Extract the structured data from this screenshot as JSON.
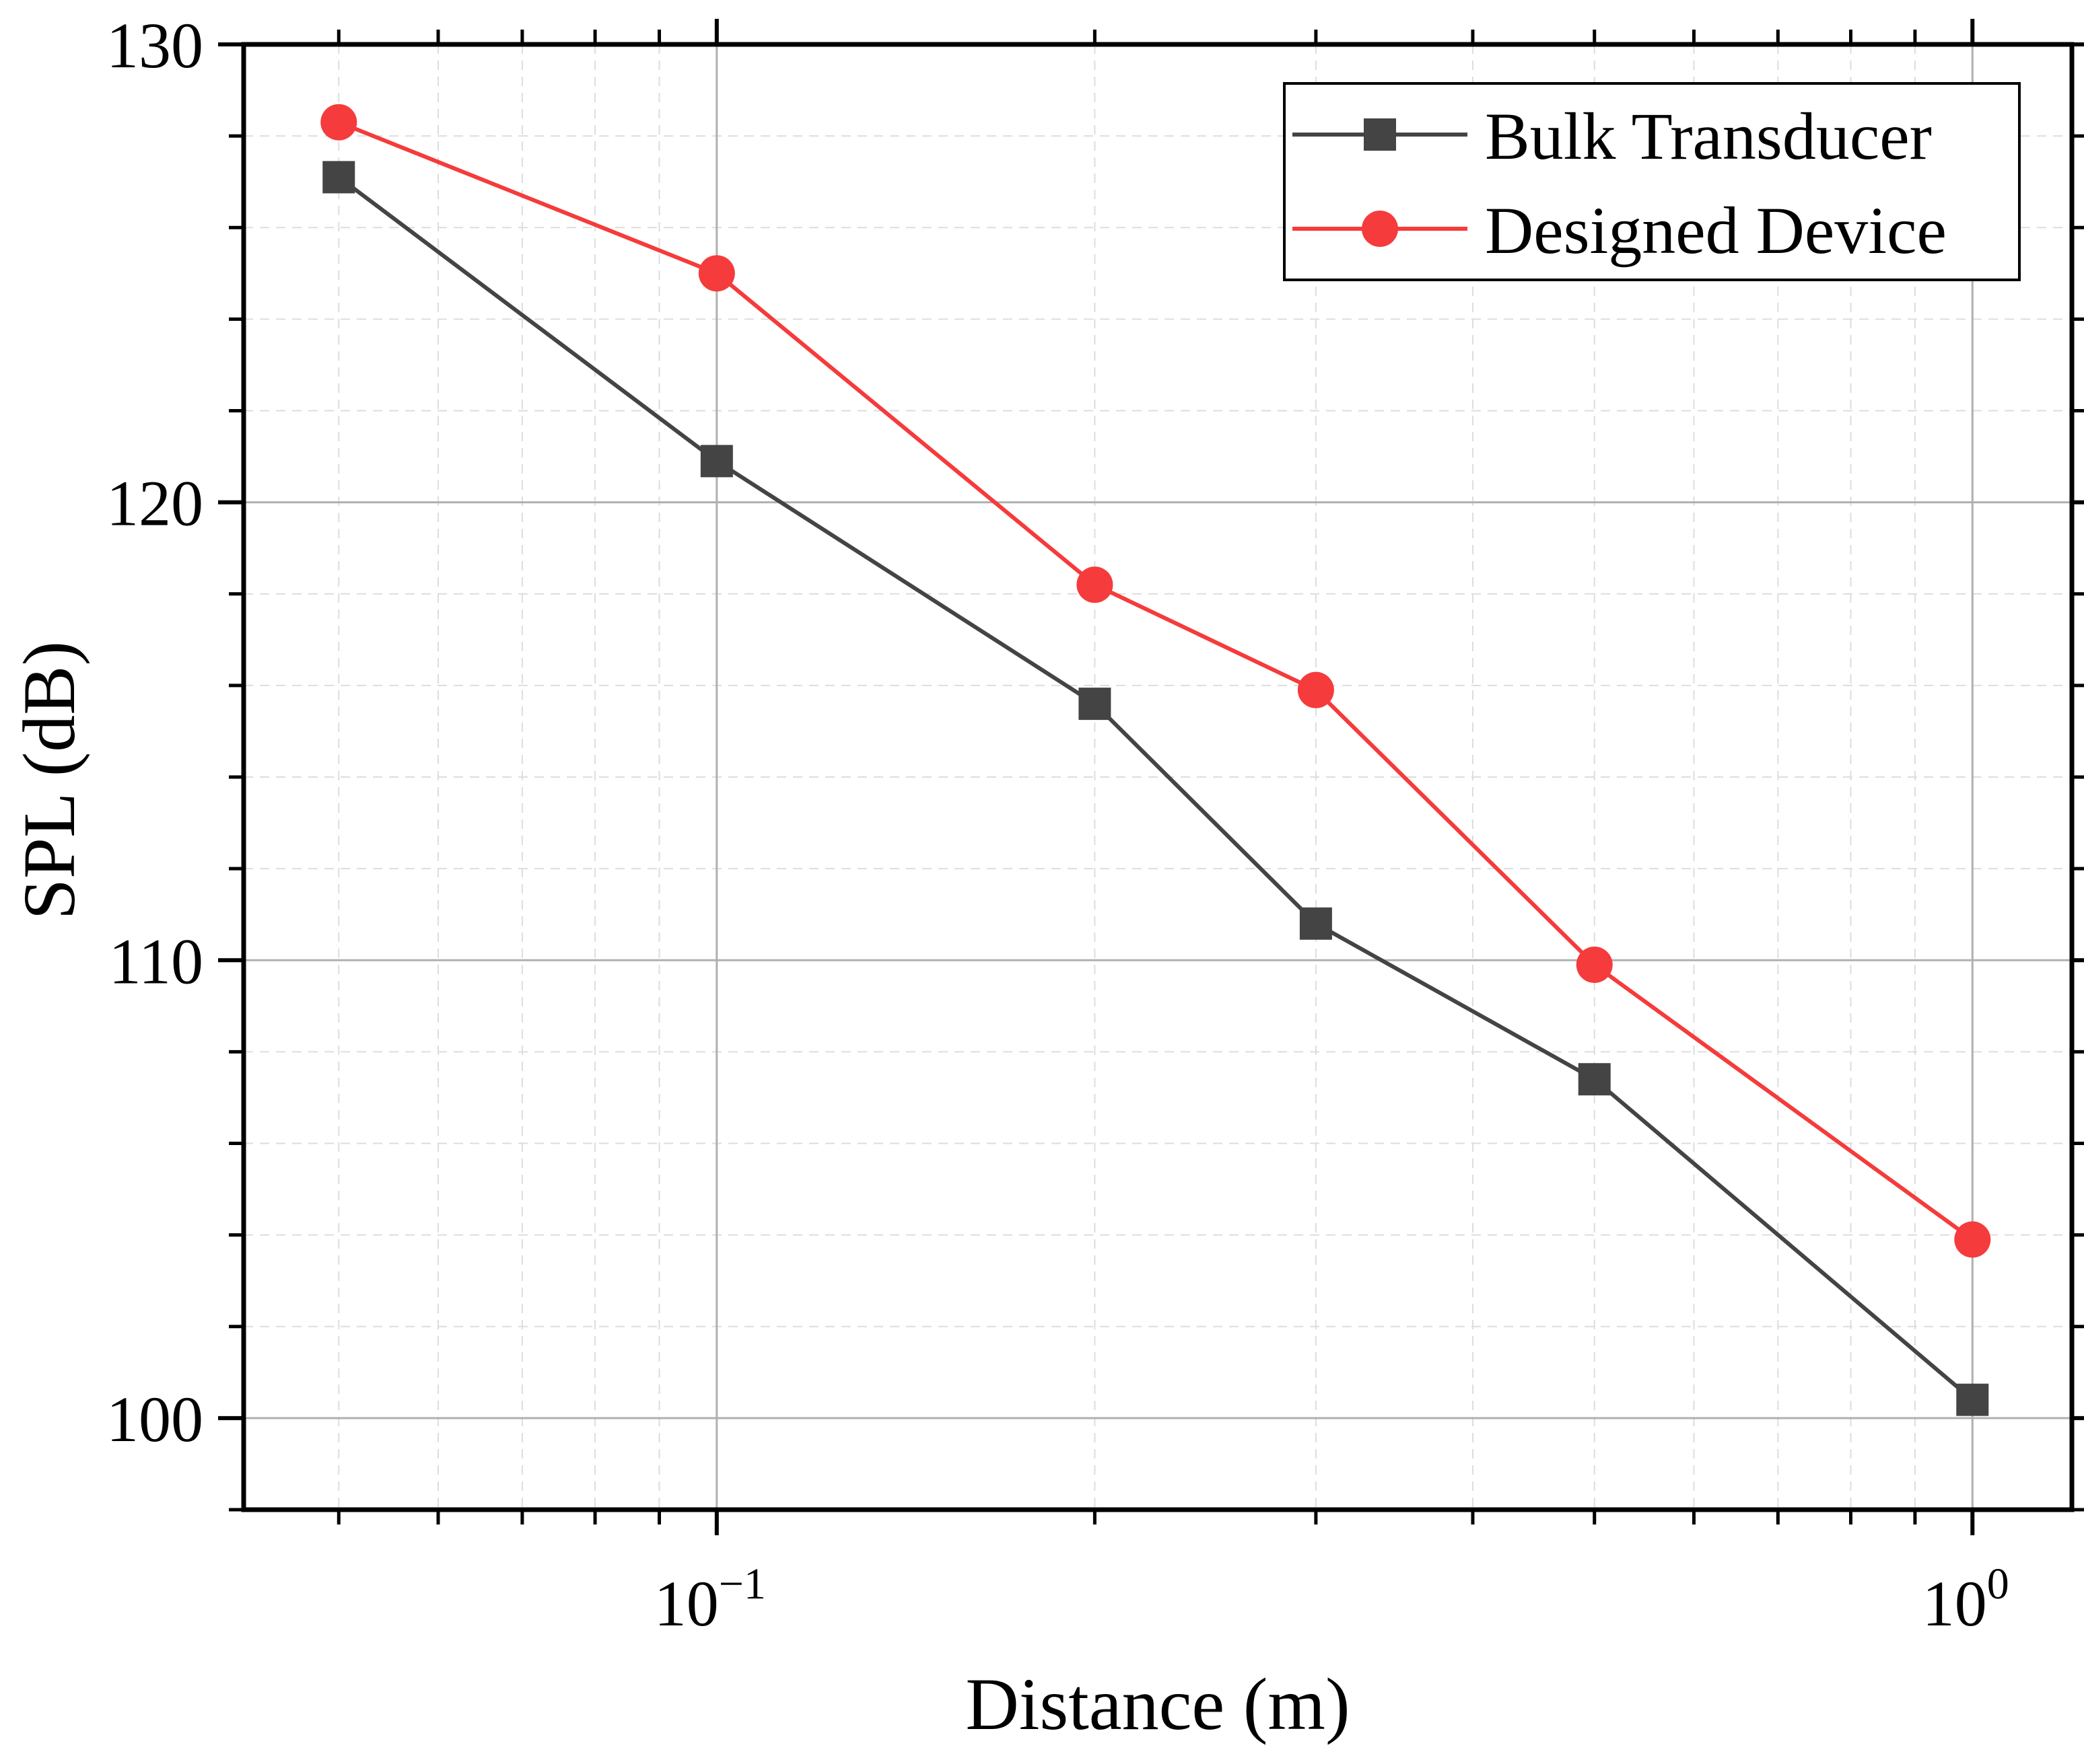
{
  "chart_data": {
    "type": "line",
    "title": "",
    "xlabel": "Distance (m)",
    "ylabel": "SPL (dB)",
    "xscale": "log",
    "xlim": [
      0.042,
      1.2
    ],
    "ylim": [
      98,
      130
    ],
    "xticks": [
      {
        "value": 0.1,
        "base": "10",
        "exp": "−1"
      },
      {
        "value": 1,
        "base": "10",
        "exp": "0"
      }
    ],
    "yticks": [
      {
        "value": 100,
        "label": "100"
      },
      {
        "value": 110,
        "label": "110"
      },
      {
        "value": 120,
        "label": "120"
      },
      {
        "value": 130,
        "label": "130"
      }
    ],
    "grid": true,
    "legend_position": "top-right",
    "series": [
      {
        "name": "Bulk Transducer",
        "color": "#444444",
        "marker": "square",
        "x": [
          0.05,
          0.1,
          0.2,
          0.3,
          0.5,
          1.0
        ],
        "y": [
          127.1,
          120.9,
          115.6,
          110.8,
          107.4,
          100.4
        ]
      },
      {
        "name": "Designed Device",
        "color": "#f53b3b",
        "marker": "circle",
        "x": [
          0.05,
          0.1,
          0.2,
          0.3,
          0.5,
          1.0
        ],
        "y": [
          128.3,
          125.0,
          118.2,
          115.9,
          109.9,
          103.9
        ]
      }
    ]
  }
}
